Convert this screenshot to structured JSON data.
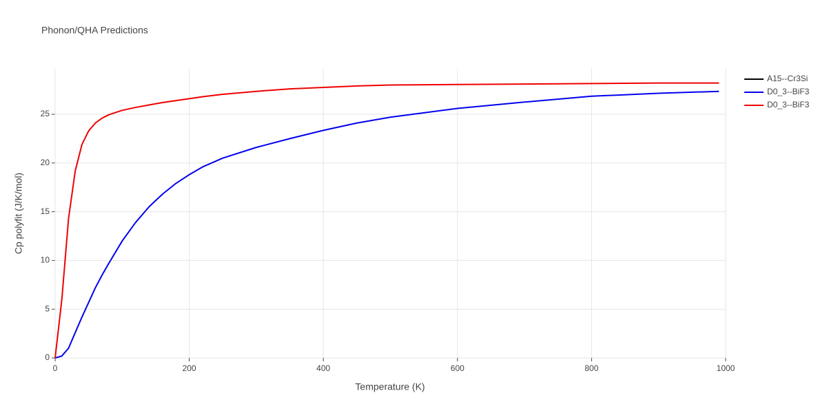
{
  "chart_data": {
    "type": "line",
    "title": "Phonon/QHA Predictions",
    "x_label": "Temperature (K)",
    "y_label": "Cp polyfit (J/K/mol)",
    "x": [
      0,
      10,
      20,
      30,
      40,
      50,
      60,
      70,
      80,
      100,
      120,
      140,
      160,
      180,
      200,
      220,
      250,
      300,
      350,
      400,
      450,
      500,
      600,
      700,
      800,
      900,
      990
    ],
    "series": [
      {
        "name": "A15--Cr3Si",
        "color": "#000000",
        "values": [
          null,
          null,
          null,
          null,
          null,
          null,
          null,
          null,
          null,
          null,
          null,
          null,
          null,
          null,
          null,
          null,
          null,
          null,
          null,
          null,
          null,
          null,
          null,
          null,
          null,
          null,
          null
        ]
      },
      {
        "name": "D0_3--BiF3",
        "color": "#0000ee",
        "values": [
          0,
          0.2,
          1.0,
          2.6,
          4.2,
          5.7,
          7.2,
          8.5,
          9.7,
          12.0,
          13.9,
          15.5,
          16.8,
          17.9,
          18.8,
          19.6,
          20.5,
          21.6,
          22.5,
          23.35,
          24.1,
          24.7,
          25.6,
          26.25,
          26.85,
          27.15,
          27.35
        ]
      },
      {
        "name": "D0_3--BiF3",
        "color": "#ee0000",
        "values": [
          0,
          6,
          14.3,
          19.2,
          21.9,
          23.3,
          24.1,
          24.6,
          24.95,
          25.4,
          25.7,
          25.95,
          26.2,
          26.4,
          26.6,
          26.8,
          27.05,
          27.35,
          27.6,
          27.75,
          27.9,
          28.0,
          28.05,
          28.1,
          28.15,
          28.2,
          28.2
        ]
      }
    ],
    "xlim": [
      0,
      1000
    ],
    "xticks": [
      0,
      200,
      400,
      600,
      800,
      1000
    ],
    "ylim": [
      0,
      29.66
    ],
    "yticks": [
      0,
      5,
      10,
      15,
      20,
      25
    ],
    "grid": true,
    "legend": "outside-right-top"
  }
}
